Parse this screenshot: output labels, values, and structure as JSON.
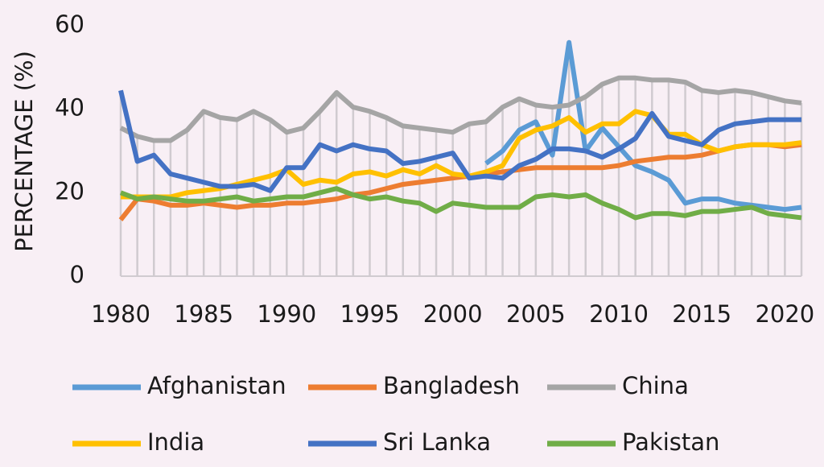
{
  "chart_data": {
    "type": "line",
    "y_label": "PERCENTAGE (%)",
    "x": [
      1980,
      1981,
      1982,
      1983,
      1984,
      1985,
      1986,
      1987,
      1988,
      1989,
      1990,
      1991,
      1992,
      1993,
      1994,
      1995,
      1996,
      1997,
      1998,
      1999,
      2000,
      2001,
      2002,
      2003,
      2004,
      2005,
      2006,
      2007,
      2008,
      2009,
      2010,
      2011,
      2012,
      2013,
      2014,
      2015,
      2016,
      2017,
      2018,
      2019,
      2020,
      2021
    ],
    "xlim": [
      1980,
      2021
    ],
    "xticks": [
      1980,
      1985,
      1990,
      1995,
      2000,
      2005,
      2010,
      2015,
      2020
    ],
    "ylim": [
      0,
      60
    ],
    "yticks": [
      0,
      20,
      40,
      60
    ],
    "droplines": true,
    "legend": "bottom",
    "series": [
      {
        "name": "Afghanistan",
        "color": "#5b9bd5",
        "values": [
          null,
          null,
          null,
          null,
          null,
          null,
          null,
          null,
          null,
          null,
          null,
          null,
          null,
          null,
          null,
          null,
          null,
          null,
          null,
          null,
          null,
          null,
          27,
          30,
          35,
          37,
          29,
          56,
          30,
          35.5,
          31,
          26.5,
          25,
          23,
          17.5,
          18.5,
          18.5,
          17.5,
          17,
          16.5,
          16,
          16.5
        ]
      },
      {
        "name": "Bangladesh",
        "color": "#ed7d31",
        "values": [
          13.5,
          18.5,
          18,
          17,
          17,
          17.5,
          17,
          16.5,
          17,
          17,
          17.5,
          17.5,
          18,
          18.5,
          19.5,
          20,
          21,
          22,
          22.5,
          23,
          23.5,
          24,
          24.5,
          25,
          25.5,
          26,
          26,
          26,
          26,
          26,
          26.5,
          27.5,
          28,
          28.5,
          28.5,
          29,
          30,
          31,
          31.5,
          31.5,
          31,
          31.5
        ]
      },
      {
        "name": "China",
        "color": "#a5a5a5",
        "values": [
          35.5,
          33.5,
          32.5,
          32.5,
          35,
          39.5,
          38,
          37.5,
          39.5,
          37.5,
          34.5,
          35.5,
          39.5,
          44,
          40.5,
          39.5,
          38,
          36,
          35.5,
          35,
          34.5,
          36.5,
          37,
          40.5,
          42.5,
          41,
          40.5,
          41,
          43,
          46,
          47.5,
          47.5,
          47,
          47,
          46.5,
          44.5,
          44,
          44.5,
          44,
          43,
          42,
          41.5
        ]
      },
      {
        "name": "India",
        "color": "#ffc000",
        "values": [
          19,
          19,
          19,
          19,
          20,
          20.5,
          21,
          22,
          23,
          24,
          25.5,
          22,
          23,
          22.5,
          24.5,
          25,
          24,
          25.5,
          24.5,
          26.5,
          24.5,
          24,
          25,
          26.5,
          33,
          35,
          36,
          38,
          34.5,
          36.5,
          36.5,
          39.5,
          38.5,
          34,
          34,
          31.5,
          30,
          31,
          31.5,
          31.5,
          31.5,
          32
        ]
      },
      {
        "name": "Sri Lanka",
        "color": "#4472c4",
        "values": [
          44.5,
          27.5,
          29,
          24.5,
          23.5,
          22.5,
          21.5,
          21.5,
          22,
          20.5,
          26,
          26,
          31.5,
          30,
          31.5,
          30.5,
          30,
          27,
          27.5,
          28.5,
          29.5,
          23.5,
          24,
          23.5,
          26.5,
          28,
          30.5,
          30.5,
          30,
          28.5,
          30.5,
          33,
          39,
          33.5,
          32.5,
          31.5,
          35,
          36.5,
          37,
          37.5,
          37.5,
          37.5
        ]
      },
      {
        "name": "Pakistan",
        "color": "#70ad47",
        "values": [
          20,
          18.5,
          19,
          18.5,
          18,
          18,
          18.5,
          19,
          18,
          18.5,
          19,
          19,
          20,
          21,
          19.5,
          18.5,
          19,
          18,
          17.5,
          15.5,
          17.5,
          17,
          16.5,
          16.5,
          16.5,
          19,
          19.5,
          19,
          19.5,
          17.5,
          16,
          14,
          15,
          15,
          14.5,
          15.5,
          15.5,
          16,
          16.5,
          15,
          14.5,
          14
        ]
      }
    ]
  }
}
